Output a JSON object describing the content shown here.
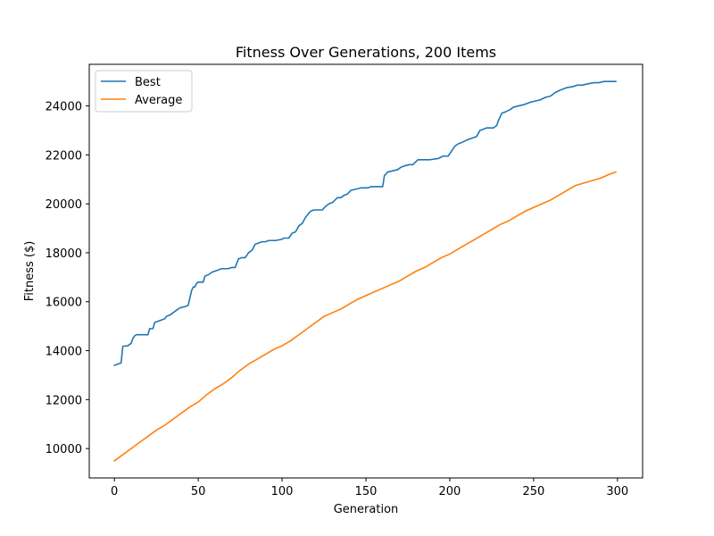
{
  "chart_data": {
    "type": "line",
    "title": "Fitness Over Generations, 200 Items",
    "xlabel": "Generation",
    "ylabel": "Fitness ($)",
    "xlim": [
      -15,
      315
    ],
    "ylim": [
      8800,
      25700
    ],
    "xticks": [
      0,
      50,
      100,
      150,
      200,
      250,
      300
    ],
    "yticks": [
      10000,
      12000,
      14000,
      16000,
      18000,
      20000,
      22000,
      24000
    ],
    "grid": false,
    "legend_position": "upper-left",
    "series": [
      {
        "name": "Best",
        "color": "#1f77b4",
        "x": [
          0,
          2,
          4,
          5,
          8,
          10,
          11,
          12,
          13,
          20,
          21,
          23,
          24,
          26,
          30,
          31,
          33,
          36,
          37,
          39,
          42,
          44,
          45,
          46,
          47,
          48,
          49,
          50,
          53,
          54,
          56,
          58,
          60,
          62,
          64,
          68,
          70,
          72,
          74,
          76,
          78,
          80,
          81,
          82,
          84,
          86,
          88,
          90,
          92,
          94,
          96,
          100,
          101,
          104,
          106,
          108,
          110,
          112,
          114,
          117,
          119,
          121,
          124,
          126,
          128,
          130,
          133,
          135,
          137,
          139,
          141,
          144,
          147,
          151,
          153,
          160,
          161,
          163,
          166,
          169,
          171,
          173,
          176,
          178,
          181,
          184,
          188,
          193,
          196,
          199,
          203,
          205,
          207,
          210,
          212,
          216,
          218,
          220,
          222,
          226,
          228,
          229,
          231,
          233,
          236,
          238,
          241,
          244,
          248,
          251,
          254,
          257,
          260,
          263,
          266,
          268,
          270,
          274,
          276,
          279,
          282,
          286,
          289,
          292,
          295,
          299
        ],
        "values": [
          13400,
          13450,
          13500,
          14180,
          14200,
          14300,
          14500,
          14600,
          14650,
          14650,
          14900,
          14900,
          15150,
          15200,
          15300,
          15400,
          15450,
          15600,
          15650,
          15750,
          15800,
          15850,
          16150,
          16450,
          16600,
          16600,
          16750,
          16800,
          16800,
          17050,
          17100,
          17200,
          17250,
          17300,
          17350,
          17350,
          17400,
          17400,
          17750,
          17800,
          17800,
          18000,
          18050,
          18100,
          18350,
          18400,
          18450,
          18450,
          18500,
          18500,
          18500,
          18550,
          18600,
          18600,
          18800,
          18850,
          19100,
          19200,
          19450,
          19700,
          19750,
          19750,
          19750,
          19900,
          20000,
          20050,
          20250,
          20250,
          20350,
          20400,
          20550,
          20600,
          20650,
          20650,
          20700,
          20700,
          21150,
          21300,
          21350,
          21400,
          21500,
          21550,
          21600,
          21600,
          21800,
          21800,
          21800,
          21850,
          21950,
          21950,
          22350,
          22450,
          22500,
          22600,
          22650,
          22750,
          23000,
          23050,
          23100,
          23100,
          23200,
          23400,
          23700,
          23750,
          23850,
          23950,
          24000,
          24050,
          24150,
          24200,
          24250,
          24350,
          24400,
          24550,
          24650,
          24700,
          24750,
          24800,
          24850,
          24850,
          24900,
          24950,
          24950,
          25000,
          25000,
          25000
        ]
      },
      {
        "name": "Average",
        "color": "#ff7f0e",
        "x": [
          0,
          5,
          10,
          15,
          20,
          25,
          30,
          35,
          40,
          45,
          50,
          55,
          60,
          65,
          70,
          75,
          80,
          85,
          90,
          95,
          100,
          105,
          110,
          115,
          120,
          125,
          130,
          135,
          140,
          145,
          150,
          155,
          160,
          165,
          170,
          175,
          180,
          185,
          190,
          195,
          200,
          205,
          210,
          215,
          220,
          225,
          230,
          235,
          240,
          245,
          250,
          255,
          260,
          265,
          270,
          275,
          280,
          285,
          290,
          295,
          299
        ],
        "values": [
          9500,
          9750,
          10000,
          10250,
          10500,
          10750,
          10950,
          11200,
          11450,
          11700,
          11900,
          12200,
          12450,
          12650,
          12900,
          13200,
          13450,
          13650,
          13850,
          14050,
          14200,
          14400,
          14650,
          14900,
          15150,
          15400,
          15550,
          15700,
          15900,
          16100,
          16250,
          16400,
          16550,
          16700,
          16850,
          17050,
          17250,
          17400,
          17600,
          17800,
          17950,
          18150,
          18350,
          18550,
          18750,
          18950,
          19150,
          19300,
          19500,
          19700,
          19850,
          20000,
          20150,
          20350,
          20550,
          20750,
          20850,
          20950,
          21050,
          21200,
          21300
        ]
      }
    ]
  }
}
